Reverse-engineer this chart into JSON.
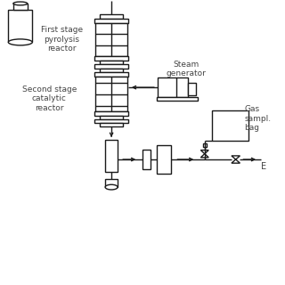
{
  "bg_color": "#ffffff",
  "line_color": "#1a1a1a",
  "lw": 1.0,
  "fig_size": [
    3.2,
    3.2
  ],
  "dpi": 100,
  "labels": {
    "first_stage": "First stage\npyrolysis\nreactor",
    "second_stage": "Second stage\ncatalytic\nreactor",
    "steam_gen": "Steam\ngenerator",
    "gas_sample": "Gas\nsampl.\nbag",
    "exhaust": "E"
  },
  "xlim": [
    0,
    10
  ],
  "ylim": [
    0,
    10
  ]
}
